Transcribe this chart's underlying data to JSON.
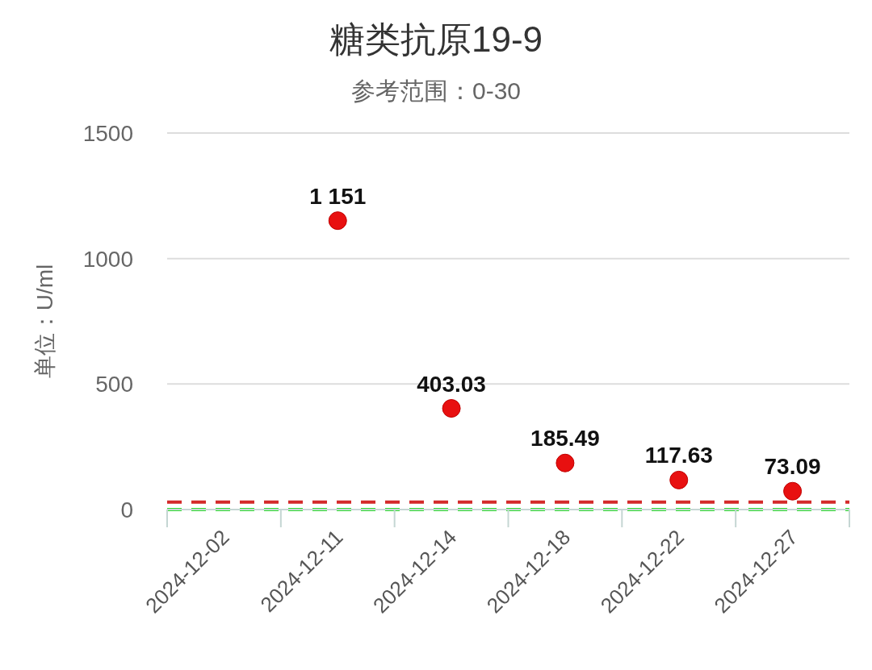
{
  "chart_data": {
    "type": "scatter",
    "title": "糖类抗原19-9",
    "subtitle": "参考范围：0-30",
    "ylabel": "单位：U/ml",
    "categories": [
      "2024-12-02",
      "2024-12-11",
      "2024-12-14",
      "2024-12-18",
      "2024-12-22",
      "2024-12-27"
    ],
    "values": [
      null,
      1151,
      403.03,
      185.49,
      117.63,
      73.09
    ],
    "value_labels": [
      null,
      "1 151",
      "403.03",
      "185.49",
      "117.63",
      "73.09"
    ],
    "color": "#e81010",
    "marker": "circle",
    "ylim": [
      0,
      1500
    ],
    "yticks": [
      0,
      500,
      1000,
      1500
    ],
    "grid": "y",
    "ref_lines": [
      {
        "axis": "y",
        "value": 30,
        "color": "#d42a2a",
        "line_style": "dashed"
      },
      {
        "axis": "y",
        "value": 0,
        "color": "#33dd33",
        "line_style": "dashed"
      }
    ]
  }
}
